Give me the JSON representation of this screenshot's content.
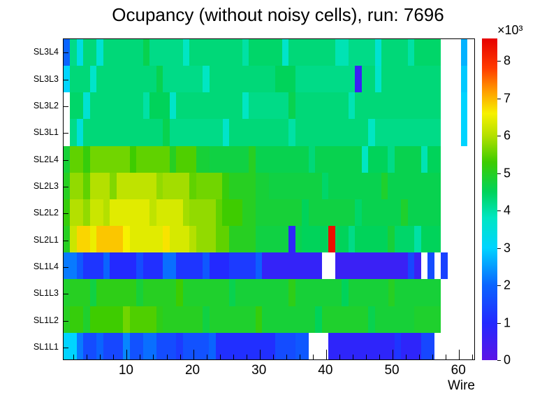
{
  "page": {
    "background": "#ffffff"
  },
  "chart_data": {
    "type": "heatmap",
    "title": "Ocupancy (without noisy cells), run: 7696",
    "xlabel": "Wire",
    "x_range": [
      0.5,
      62.5
    ],
    "x_ticks": [
      10,
      20,
      30,
      40,
      50,
      60
    ],
    "wires": 62,
    "value_scale_label": "×10³",
    "value_range": [
      0,
      8.6
    ],
    "colorbar_ticks": [
      0,
      1,
      2,
      3,
      4,
      5,
      6,
      7,
      8
    ],
    "palette": [
      [
        0.0,
        "#5c14e6"
      ],
      [
        1.0,
        "#2329ff"
      ],
      [
        2.0,
        "#0a64ff"
      ],
      [
        3.0,
        "#00d4ff"
      ],
      [
        3.8,
        "#00e6c3"
      ],
      [
        4.5,
        "#00d35a"
      ],
      [
        5.3,
        "#3ecc00"
      ],
      [
        6.0,
        "#b4e000"
      ],
      [
        6.6,
        "#f7f100"
      ],
      [
        7.2,
        "#ff9c00"
      ],
      [
        7.8,
        "#ff3c00"
      ],
      [
        8.6,
        "#e60000"
      ]
    ],
    "row_order": "top-to-bottom",
    "rows": [
      {
        "label": "SL3L4",
        "runs": [
          [
            1,
            2.0
          ],
          [
            1,
            4.2
          ],
          [
            1,
            3.4
          ],
          [
            2,
            4.3
          ],
          [
            1,
            3.6
          ],
          [
            6,
            4.3
          ],
          [
            1,
            4.6
          ],
          [
            5,
            4.2
          ],
          [
            1,
            3.8
          ],
          [
            8,
            4.3
          ],
          [
            1,
            4.0
          ],
          [
            5,
            4.4
          ],
          [
            1,
            3.7
          ],
          [
            7,
            4.3
          ],
          [
            2,
            3.9
          ],
          [
            4,
            4.2
          ],
          [
            1,
            3.6
          ],
          [
            4,
            4.3
          ],
          [
            1,
            4.0
          ],
          [
            4,
            4.4
          ],
          [
            3,
            null
          ],
          [
            1,
            2.7
          ],
          [
            1,
            null
          ]
        ]
      },
      {
        "label": "SL3L3",
        "runs": [
          [
            1,
            3.0
          ],
          [
            3,
            4.3
          ],
          [
            1,
            3.7
          ],
          [
            9,
            4.3
          ],
          [
            1,
            4.6
          ],
          [
            6,
            4.2
          ],
          [
            1,
            3.8
          ],
          [
            10,
            4.3
          ],
          [
            3,
            4.5
          ],
          [
            9,
            4.2
          ],
          [
            1,
            0.6
          ],
          [
            2,
            4.3
          ],
          [
            1,
            3.7
          ],
          [
            9,
            4.3
          ],
          [
            3,
            null
          ],
          [
            1,
            2.9
          ],
          [
            1,
            null
          ]
        ]
      },
      {
        "label": "SL3L2",
        "runs": [
          [
            1,
            null
          ],
          [
            2,
            4.4
          ],
          [
            1,
            3.6
          ],
          [
            8,
            4.3
          ],
          [
            1,
            4.0
          ],
          [
            3,
            4.5
          ],
          [
            1,
            3.7
          ],
          [
            10,
            4.3
          ],
          [
            1,
            3.8
          ],
          [
            6,
            4.2
          ],
          [
            1,
            4.6
          ],
          [
            8,
            4.3
          ],
          [
            1,
            3.9
          ],
          [
            13,
            4.3
          ],
          [
            3,
            null
          ],
          [
            1,
            3.0
          ],
          [
            1,
            null
          ]
        ]
      },
      {
        "label": "SL3L1",
        "runs": [
          [
            1,
            null
          ],
          [
            1,
            4.2
          ],
          [
            1,
            3.5
          ],
          [
            12,
            4.3
          ],
          [
            1,
            4.6
          ],
          [
            8,
            4.2
          ],
          [
            1,
            3.7
          ],
          [
            9,
            4.3
          ],
          [
            1,
            4.0
          ],
          [
            11,
            4.3
          ],
          [
            1,
            3.8
          ],
          [
            10,
            4.2
          ],
          [
            3,
            null
          ],
          [
            1,
            3.0
          ],
          [
            1,
            null
          ]
        ]
      },
      {
        "label": "SL2L4",
        "runs": [
          [
            1,
            4.8
          ],
          [
            2,
            5.5
          ],
          [
            1,
            5.2
          ],
          [
            6,
            5.6
          ],
          [
            1,
            5.3
          ],
          [
            5,
            5.5
          ],
          [
            1,
            5.0
          ],
          [
            3,
            5.4
          ],
          [
            2,
            4.8
          ],
          [
            6,
            4.7
          ],
          [
            1,
            5.0
          ],
          [
            8,
            4.6
          ],
          [
            1,
            4.3
          ],
          [
            7,
            4.6
          ],
          [
            1,
            3.8
          ],
          [
            3,
            4.5
          ],
          [
            1,
            4.2
          ],
          [
            4,
            4.6
          ],
          [
            1,
            3.9
          ],
          [
            2,
            4.5
          ],
          [
            5,
            null
          ]
        ]
      },
      {
        "label": "SL2L3",
        "runs": [
          [
            1,
            5.0
          ],
          [
            2,
            5.8
          ],
          [
            1,
            5.5
          ],
          [
            3,
            6.0
          ],
          [
            1,
            5.7
          ],
          [
            6,
            6.1
          ],
          [
            1,
            5.8
          ],
          [
            4,
            5.9
          ],
          [
            1,
            5.5
          ],
          [
            4,
            5.6
          ],
          [
            1,
            5.2
          ],
          [
            4,
            5.0
          ],
          [
            2,
            4.8
          ],
          [
            8,
            4.7
          ],
          [
            1,
            4.4
          ],
          [
            8,
            4.6
          ],
          [
            1,
            4.9
          ],
          [
            8,
            4.6
          ],
          [
            5,
            null
          ]
        ]
      },
      {
        "label": "SL2L2",
        "runs": [
          [
            1,
            5.2
          ],
          [
            2,
            6.0
          ],
          [
            1,
            5.8
          ],
          [
            2,
            6.2
          ],
          [
            1,
            6.0
          ],
          [
            6,
            6.4
          ],
          [
            1,
            6.1
          ],
          [
            4,
            6.3
          ],
          [
            1,
            5.9
          ],
          [
            4,
            5.8
          ],
          [
            1,
            5.5
          ],
          [
            3,
            5.3
          ],
          [
            2,
            5.0
          ],
          [
            7,
            4.8
          ],
          [
            1,
            4.5
          ],
          [
            7,
            4.7
          ],
          [
            1,
            4.4
          ],
          [
            6,
            4.6
          ],
          [
            1,
            4.9
          ],
          [
            5,
            4.6
          ],
          [
            5,
            null
          ]
        ]
      },
      {
        "label": "SL2L1",
        "runs": [
          [
            1,
            5.0
          ],
          [
            1,
            6.2
          ],
          [
            2,
            6.8
          ],
          [
            1,
            6.5
          ],
          [
            4,
            6.9
          ],
          [
            1,
            6.6
          ],
          [
            5,
            6.4
          ],
          [
            1,
            6.7
          ],
          [
            3,
            6.3
          ],
          [
            1,
            6.0
          ],
          [
            3,
            5.8
          ],
          [
            2,
            5.5
          ],
          [
            4,
            5.0
          ],
          [
            5,
            4.7
          ],
          [
            1,
            0.8
          ],
          [
            1,
            4.6
          ],
          [
            4,
            4.5
          ],
          [
            1,
            8.4
          ],
          [
            2,
            4.5
          ],
          [
            1,
            4.2
          ],
          [
            5,
            4.5
          ],
          [
            1,
            4.8
          ],
          [
            3,
            4.4
          ],
          [
            1,
            4.0
          ],
          [
            3,
            4.5
          ],
          [
            5,
            null
          ]
        ]
      },
      {
        "label": "SL1L4",
        "runs": [
          [
            2,
            2.2
          ],
          [
            1,
            1.8
          ],
          [
            3,
            1.2
          ],
          [
            1,
            2.0
          ],
          [
            4,
            1.0
          ],
          [
            1,
            1.6
          ],
          [
            3,
            1.1
          ],
          [
            2,
            2.1
          ],
          [
            4,
            1.2
          ],
          [
            1,
            1.8
          ],
          [
            3,
            1.0
          ],
          [
            4,
            1.3
          ],
          [
            1,
            1.9
          ],
          [
            9,
            0.7
          ],
          [
            2,
            null
          ],
          [
            11,
            0.6
          ],
          [
            1,
            1.5
          ],
          [
            1,
            0.6
          ],
          [
            1,
            null
          ],
          [
            1,
            1.6
          ],
          [
            1,
            null
          ],
          [
            1,
            1.4
          ],
          [
            4,
            null
          ]
        ]
      },
      {
        "label": "SL1L3",
        "runs": [
          [
            1,
            4.9
          ],
          [
            3,
            5.0
          ],
          [
            1,
            4.7
          ],
          [
            6,
            5.1
          ],
          [
            1,
            4.8
          ],
          [
            5,
            5.0
          ],
          [
            1,
            5.3
          ],
          [
            7,
            4.9
          ],
          [
            1,
            4.6
          ],
          [
            8,
            4.8
          ],
          [
            1,
            5.1
          ],
          [
            7,
            4.8
          ],
          [
            1,
            4.5
          ],
          [
            6,
            4.8
          ],
          [
            1,
            5.0
          ],
          [
            7,
            4.8
          ],
          [
            5,
            null
          ]
        ]
      },
      {
        "label": "SL1L2",
        "runs": [
          [
            1,
            5.0
          ],
          [
            2,
            5.2
          ],
          [
            1,
            4.9
          ],
          [
            5,
            5.3
          ],
          [
            1,
            5.6
          ],
          [
            4,
            5.4
          ],
          [
            1,
            5.1
          ],
          [
            6,
            5.0
          ],
          [
            1,
            4.7
          ],
          [
            7,
            4.9
          ],
          [
            1,
            5.2
          ],
          [
            8,
            4.8
          ],
          [
            1,
            4.5
          ],
          [
            7,
            4.9
          ],
          [
            1,
            4.6
          ],
          [
            6,
            4.8
          ],
          [
            4,
            4.9
          ],
          [
            5,
            null
          ]
        ]
      },
      {
        "label": "SL1L1",
        "runs": [
          [
            2,
            3.0
          ],
          [
            1,
            2.2
          ],
          [
            2,
            1.6
          ],
          [
            1,
            2.0
          ],
          [
            3,
            1.5
          ],
          [
            1,
            2.3
          ],
          [
            2,
            1.7
          ],
          [
            2,
            2.1
          ],
          [
            3,
            1.6
          ],
          [
            1,
            1.3
          ],
          [
            4,
            1.7
          ],
          [
            1,
            2.0
          ],
          [
            9,
            1.1
          ],
          [
            3,
            1.6
          ],
          [
            2,
            1.8
          ],
          [
            3,
            null
          ],
          [
            10,
            0.8
          ],
          [
            1,
            1.2
          ],
          [
            3,
            0.8
          ],
          [
            2,
            1.5
          ],
          [
            6,
            null
          ]
        ]
      }
    ]
  }
}
